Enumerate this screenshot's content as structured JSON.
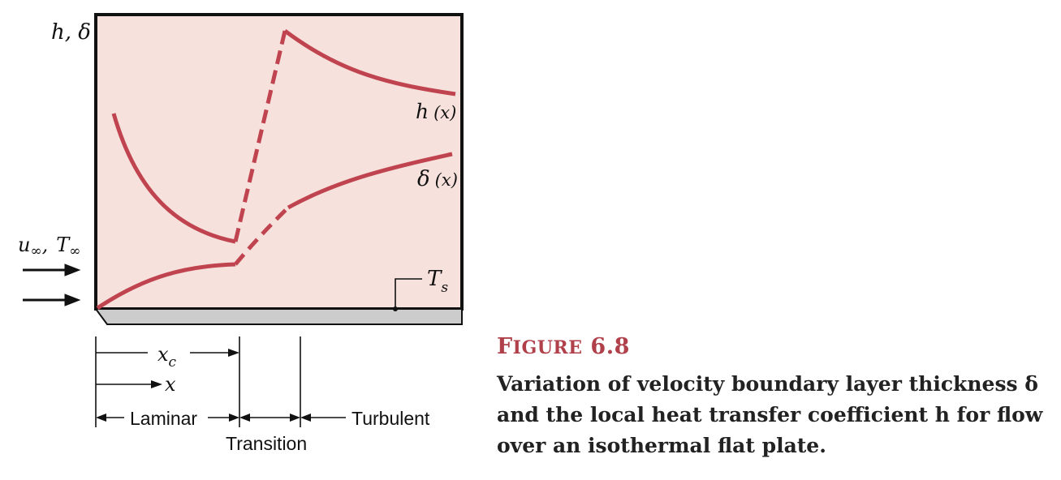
{
  "axis": {
    "ylabel": "h, δ"
  },
  "curves": {
    "h_label_main": "h",
    "h_label_arg": "(x)",
    "delta_label_main": "δ",
    "delta_label_arg": "(x)"
  },
  "surface": {
    "ts_main": "T",
    "ts_sub": "s"
  },
  "inflow": {
    "u_main": "u",
    "u_sub": "∞",
    "sep": ",",
    "t_main": "T",
    "t_sub": "∞"
  },
  "dimensions": {
    "xc_main": "x",
    "xc_sub": "c",
    "x_label": "x"
  },
  "regions": {
    "laminar": "Laminar",
    "transition": "Transition",
    "turbulent": "Turbulent"
  },
  "caption": {
    "figure_label_first": "F",
    "figure_label_rest": "IGURE",
    "figure_number": "6.8",
    "text": "Variation of velocity boundary layer thickness δ and the local heat transfer coefficient h for flow over an isothermal flat plate."
  },
  "colors": {
    "curve": "#c0444f",
    "panel": "#f7e1dc",
    "plate": "#cccccc",
    "caption_label": "#b0404a"
  }
}
